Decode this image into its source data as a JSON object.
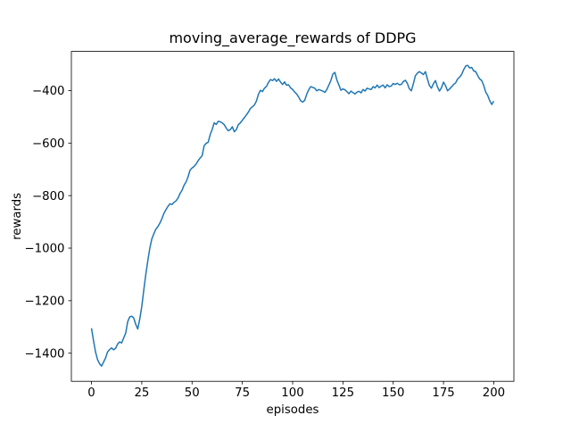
{
  "chart_data": {
    "type": "line",
    "title": "moving_average_rewards of DDPG",
    "xlabel": "episodes",
    "ylabel": "rewards",
    "x_ticks": [
      0,
      25,
      50,
      75,
      100,
      125,
      150,
      175,
      200
    ],
    "y_ticks": [
      -400,
      -600,
      -800,
      -1000,
      -1200,
      -1400
    ],
    "xlim": [
      -10,
      210
    ],
    "ylim": [
      -1507,
      -251
    ],
    "grid": false,
    "line_color": "#1f77b4",
    "background_color": "#ffffff",
    "series": [
      {
        "name": "moving_average_rewards",
        "x_start": 0,
        "x_step": 1,
        "values": [
          -1305,
          -1352,
          -1395,
          -1424,
          -1440,
          -1449,
          -1434,
          -1418,
          -1395,
          -1386,
          -1380,
          -1387,
          -1381,
          -1365,
          -1357,
          -1361,
          -1342,
          -1324,
          -1280,
          -1262,
          -1259,
          -1266,
          -1290,
          -1308,
          -1270,
          -1222,
          -1160,
          -1100,
          -1048,
          -1000,
          -965,
          -945,
          -928,
          -918,
          -905,
          -888,
          -868,
          -854,
          -841,
          -831,
          -834,
          -826,
          -820,
          -810,
          -792,
          -780,
          -761,
          -748,
          -729,
          -703,
          -695,
          -689,
          -680,
          -667,
          -657,
          -648,
          -610,
          -601,
          -597,
          -568,
          -548,
          -523,
          -529,
          -517,
          -519,
          -523,
          -530,
          -543,
          -553,
          -549,
          -538,
          -557,
          -549,
          -530,
          -523,
          -513,
          -503,
          -493,
          -482,
          -468,
          -462,
          -455,
          -440,
          -414,
          -399,
          -404,
          -391,
          -384,
          -369,
          -358,
          -362,
          -355,
          -365,
          -356,
          -368,
          -377,
          -367,
          -380,
          -378,
          -390,
          -396,
          -406,
          -413,
          -425,
          -439,
          -444,
          -437,
          -414,
          -397,
          -385,
          -388,
          -391,
          -401,
          -396,
          -399,
          -402,
          -407,
          -396,
          -379,
          -362,
          -337,
          -331,
          -360,
          -379,
          -399,
          -394,
          -397,
          -404,
          -412,
          -402,
          -408,
          -413,
          -406,
          -403,
          -409,
          -396,
          -402,
          -391,
          -394,
          -396,
          -385,
          -390,
          -379,
          -389,
          -383,
          -379,
          -390,
          -378,
          -385,
          -383,
          -373,
          -377,
          -372,
          -378,
          -377,
          -366,
          -361,
          -372,
          -393,
          -401,
          -375,
          -344,
          -334,
          -328,
          -333,
          -339,
          -328,
          -356,
          -381,
          -391,
          -374,
          -362,
          -386,
          -402,
          -389,
          -368,
          -381,
          -401,
          -394,
          -386,
          -377,
          -371,
          -356,
          -349,
          -339,
          -321,
          -307,
          -304,
          -314,
          -312,
          -325,
          -328,
          -343,
          -356,
          -362,
          -381,
          -406,
          -419,
          -439,
          -453,
          -440
        ]
      }
    ]
  }
}
